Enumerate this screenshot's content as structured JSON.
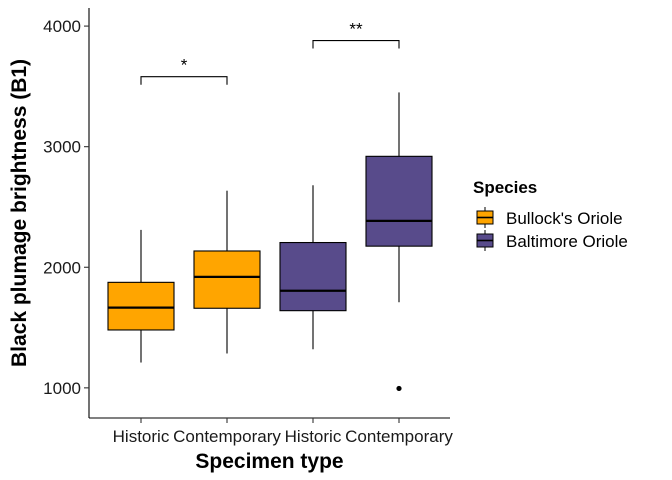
{
  "chart_data": {
    "type": "boxplot",
    "xlabel": "Specimen type",
    "ylabel": "Black plumage brightness (B1)",
    "ylim": [
      750,
      4150
    ],
    "yticks": [
      1000,
      2000,
      3000,
      4000
    ],
    "grid": false,
    "legend": {
      "title": "Species",
      "placement": "right",
      "entries": [
        {
          "name": "Bullock's Oriole",
          "color": "#FFA500"
        },
        {
          "name": "Baltimore Oriole",
          "color": "#584B8B"
        }
      ]
    },
    "boxes": [
      {
        "category": "Historic",
        "species": "Bullock's Oriole",
        "min": 1210,
        "q1": 1480,
        "median": 1665,
        "q3": 1875,
        "max": 2310,
        "outliers": []
      },
      {
        "category": "Contemporary",
        "species": "Bullock's Oriole",
        "min": 1285,
        "q1": 1660,
        "median": 1920,
        "q3": 2135,
        "max": 2635,
        "outliers": []
      },
      {
        "category": "Historic",
        "species": "Baltimore Oriole",
        "min": 1320,
        "q1": 1640,
        "median": 1805,
        "q3": 2205,
        "max": 2680,
        "outliers": []
      },
      {
        "category": "Contemporary",
        "species": "Baltimore Oriole",
        "min": 1710,
        "q1": 2175,
        "median": 2385,
        "q3": 2920,
        "max": 3450,
        "outliers": [
          995
        ]
      }
    ],
    "annotations": [
      {
        "from_box": 0,
        "to_box": 1,
        "y": 3580,
        "label": "*"
      },
      {
        "from_box": 2,
        "to_box": 3,
        "y": 3880,
        "label": "**"
      }
    ]
  }
}
